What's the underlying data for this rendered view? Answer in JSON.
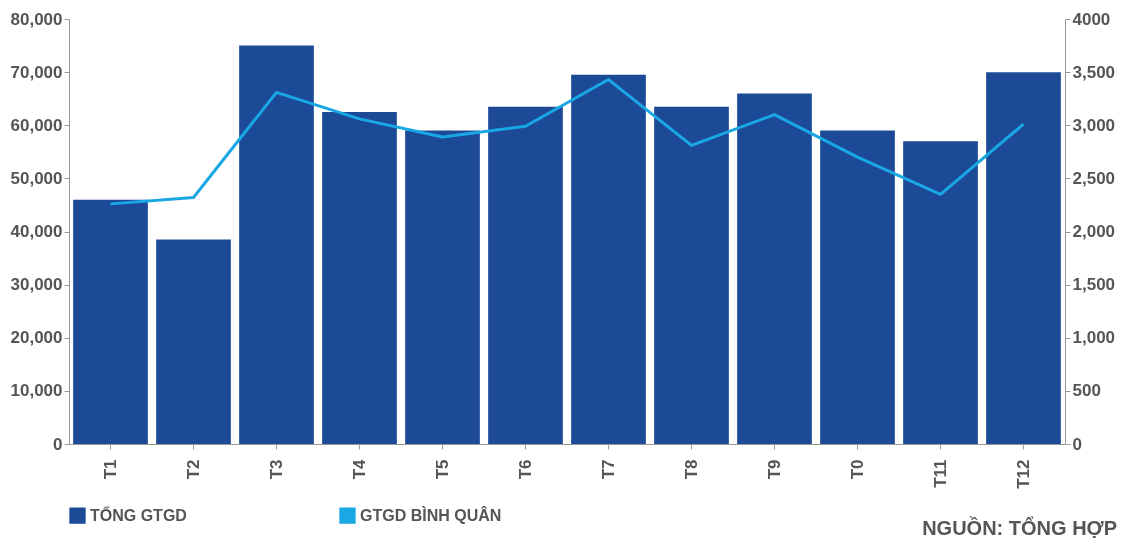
{
  "chart_data": {
    "type": "bar",
    "categories": [
      "T1",
      "T2",
      "T3",
      "T4",
      "T5",
      "T6",
      "T7",
      "T8",
      "T9",
      "T0",
      "T11",
      "T12"
    ],
    "series": [
      {
        "name": "TỔNG GTGD",
        "color": "#1c4a97",
        "values": [
          46000,
          38500,
          75000,
          62500,
          59000,
          63500,
          69500,
          63500,
          66000,
          59000,
          57000,
          70000
        ]
      },
      {
        "name": "GTGD BÌNH QUÂN",
        "type": "line",
        "axis": "y2",
        "color": "#1aa7e6",
        "values": [
          2260,
          2320,
          3310,
          3060,
          2890,
          2990,
          3430,
          2810,
          3100,
          2700,
          2350,
          3010
        ]
      }
    ],
    "ylim": [
      0,
      80000
    ],
    "yticks": [
      0,
      {
        "value": 10000,
        "label": "10,000"
      },
      {
        "value": 20000,
        "label": "20,000"
      },
      {
        "value": 30000,
        "label": "30,000"
      },
      {
        "value": 40000,
        "label": "40,000"
      },
      {
        "value": 50000,
        "label": "50,000"
      },
      {
        "value": 60000,
        "label": "60,000"
      },
      {
        "value": 70000,
        "label": "70,000"
      },
      {
        "value": 80000,
        "label": "80,000"
      }
    ],
    "y2lim": [
      0,
      4000
    ],
    "y2ticks": [
      0,
      500,
      {
        "value": 1000,
        "label": "1,000"
      },
      {
        "value": 1500,
        "label": "1,500"
      },
      {
        "value": 2000,
        "label": "2,000"
      },
      {
        "value": 2500,
        "label": "2,500"
      },
      {
        "value": 3000,
        "label": "3,000"
      },
      {
        "value": 3500,
        "label": "3,500"
      },
      4000
    ],
    "grid": false,
    "legend": "bottom",
    "annotations": [
      "NGUỒN: TỔNG HỢP"
    ]
  }
}
